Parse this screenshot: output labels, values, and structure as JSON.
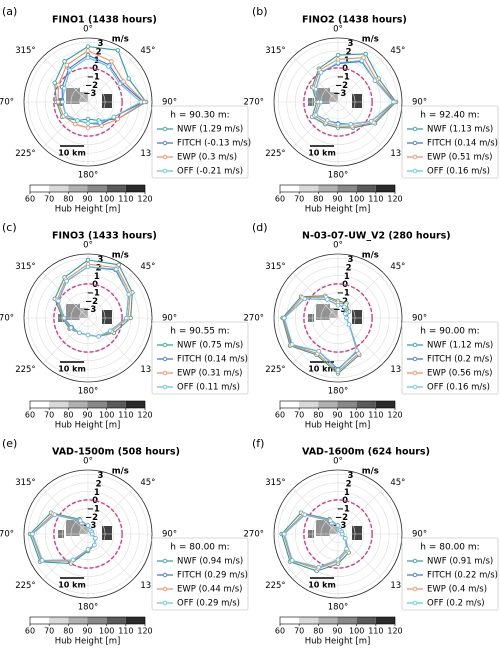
{
  "chart_data": [
    {
      "type": "polar_line",
      "panel_label": "(a)",
      "title": "FINO1 (1438 hours)",
      "r_unit": "m/s",
      "scale_bar": "10 km",
      "legend_title": "h = 90.30 m:",
      "theta": [
        0,
        30,
        60,
        90,
        120,
        150,
        180,
        210,
        240,
        270,
        300,
        330
      ],
      "theta_ticks": [
        {
          "value": 0,
          "label": "0°"
        },
        {
          "value": 45,
          "label": "45°"
        },
        {
          "value": 90,
          "label": "90°"
        },
        {
          "value": 135,
          "label": "135°"
        },
        {
          "value": 180,
          "label": "180°"
        },
        {
          "value": 225,
          "label": "225°"
        },
        {
          "value": 270,
          "label": "270°"
        },
        {
          "value": 315,
          "label": "315°"
        }
      ],
      "rlim": [
        -4,
        3.5
      ],
      "rticks": [
        {
          "value": -3,
          "label": "−3"
        },
        {
          "value": -2,
          "label": "−2"
        },
        {
          "value": -1,
          "label": "−1"
        },
        0,
        1,
        2,
        3
      ],
      "reference_ring": 0,
      "series": [
        {
          "name": "NWF (1.29 m/s)",
          "color": "#2aa198",
          "values": [
            2.5,
            3.0,
            1.5,
            2.8,
            0,
            -1.5,
            -2,
            -1.5,
            -0.5,
            -0.3,
            0.5,
            1.5
          ]
        },
        {
          "name": "FITCH (-0.13 m/s)",
          "color": "#3a6fd8",
          "values": [
            1.5,
            1,
            0.5,
            2.5,
            -0.5,
            -1,
            -1.5,
            -1.5,
            -1,
            -1,
            -0.5,
            0.5
          ]
        },
        {
          "name": "EWP (0.3 m/s)",
          "color": "#f08a5d",
          "values": [
            2,
            1.5,
            0.8,
            2.6,
            0,
            -0.8,
            -1,
            -1,
            -0.7,
            -0.5,
            0,
            1
          ]
        },
        {
          "name": "OFF (-0.21 m/s)",
          "color": "#5bc0eb",
          "values": [
            1.2,
            0.8,
            0.3,
            2.2,
            -0.5,
            -1.2,
            -1.5,
            -1.5,
            -1,
            -1,
            -0.8,
            0.3
          ]
        }
      ],
      "colorbar": {
        "label": "Hub Height [m]",
        "clim": [
          60,
          120
        ],
        "ticks": [
          60,
          70,
          80,
          90,
          100,
          110,
          120
        ],
        "colors": [
          "#ffffff",
          "#d9d9d9",
          "#b0b0b0",
          "#888888",
          "#5a5a5a",
          "#2a2a2a"
        ]
      }
    },
    {
      "type": "polar_line",
      "panel_label": "(b)",
      "title": "FINO2 (1438 hours)",
      "r_unit": "m/s",
      "scale_bar": "10 km",
      "legend_title": "h = 92.40 m:",
      "theta": [
        0,
        30,
        60,
        90,
        120,
        150,
        180,
        210,
        240,
        270,
        300,
        330
      ],
      "theta_ticks": [
        {
          "value": 0,
          "label": "0°"
        },
        {
          "value": 45,
          "label": "45°"
        },
        {
          "value": 90,
          "label": "90°"
        },
        {
          "value": 135,
          "label": "135°"
        },
        {
          "value": 180,
          "label": "180°"
        },
        {
          "value": 225,
          "label": "225°"
        },
        {
          "value": 270,
          "label": "270°"
        },
        {
          "value": 315,
          "label": "315°"
        }
      ],
      "rlim": [
        -4,
        3.5
      ],
      "rticks": [
        {
          "value": -3,
          "label": "−3"
        },
        {
          "value": -2,
          "label": "−2"
        },
        {
          "value": -1,
          "label": "−1"
        },
        0,
        1,
        2,
        3
      ],
      "reference_ring": 0,
      "series": [
        {
          "name": "NWF (1.13 m/s)",
          "color": "#2aa198",
          "values": [
            1.5,
            2.5,
            1.5,
            2.8,
            1,
            -0.5,
            -1,
            -1,
            -0.5,
            -1.5,
            -0.5,
            0.5
          ]
        },
        {
          "name": "FITCH (0.14 m/s)",
          "color": "#3a6fd8",
          "values": [
            0.5,
            1.5,
            1,
            2.6,
            0.5,
            -1,
            -1.5,
            -1.5,
            -1,
            -2,
            -1,
            0
          ]
        },
        {
          "name": "EWP (0.51 m/s)",
          "color": "#f08a5d",
          "values": [
            1,
            2,
            1.2,
            2.7,
            0.8,
            -0.7,
            -1.2,
            -1.2,
            -0.8,
            -1.7,
            -0.7,
            0.3
          ]
        },
        {
          "name": "OFF (0.16 m/s)",
          "color": "#5bc0eb",
          "values": [
            0.6,
            1.6,
            1,
            2.5,
            0.5,
            -1,
            -1.4,
            -1.5,
            -1,
            -2,
            -1,
            0
          ]
        }
      ],
      "colorbar": {
        "label": "Hub Height [m]",
        "clim": [
          60,
          120
        ],
        "ticks": [
          60,
          70,
          80,
          90,
          100,
          110,
          120
        ],
        "colors": [
          "#ffffff",
          "#d9d9d9",
          "#b0b0b0",
          "#888888",
          "#5a5a5a",
          "#2a2a2a"
        ]
      }
    },
    {
      "type": "polar_line",
      "panel_label": "(c)",
      "title": "FINO3 (1433 hours)",
      "r_unit": "m/s",
      "scale_bar": "10 km",
      "legend_title": "h = 90.55 m:",
      "theta": [
        0,
        30,
        60,
        90,
        120,
        150,
        180,
        210,
        240,
        270,
        300,
        330
      ],
      "theta_ticks": [
        {
          "value": 0,
          "label": "0°"
        },
        {
          "value": 45,
          "label": "45°"
        },
        {
          "value": 90,
          "label": "90°"
        },
        {
          "value": 135,
          "label": "135°"
        },
        {
          "value": 180,
          "label": "180°"
        },
        {
          "value": 225,
          "label": "225°"
        },
        {
          "value": 270,
          "label": "270°"
        },
        {
          "value": 315,
          "label": "315°"
        }
      ],
      "rlim": [
        -4,
        3.5
      ],
      "rticks": [
        {
          "value": -3,
          "label": "−3"
        },
        {
          "value": -2,
          "label": "−2"
        },
        {
          "value": -1,
          "label": "−1"
        },
        0,
        1,
        2,
        3
      ],
      "reference_ring": 0,
      "series": [
        {
          "name": "NWF (0.75 m/s)",
          "color": "#2aa198",
          "values": [
            2.8,
            3.2,
            2,
            1,
            -0.5,
            -1.5,
            -2,
            -2,
            -1.5,
            -1,
            0.5,
            1.5
          ]
        },
        {
          "name": "FITCH (0.14 m/s)",
          "color": "#3a6fd8",
          "values": [
            2,
            2.5,
            1.5,
            0.5,
            -1,
            -1.5,
            -2,
            -2,
            -1.8,
            -1.2,
            0,
            1
          ]
        },
        {
          "name": "EWP (0.31 m/s)",
          "color": "#f08a5d",
          "values": [
            2.3,
            2.8,
            1.7,
            0.7,
            -0.8,
            -1.5,
            -2,
            -2,
            -1.6,
            -1.1,
            0.2,
            1.2
          ]
        },
        {
          "name": "OFF (0.11 m/s)",
          "color": "#5bc0eb",
          "values": [
            2,
            2.6,
            1.5,
            0.5,
            -1,
            -1.5,
            -2,
            -2,
            -1.7,
            -1.2,
            0,
            1
          ]
        }
      ],
      "colorbar": {
        "label": "Hub Height [m]",
        "clim": [
          60,
          120
        ],
        "ticks": [
          60,
          70,
          80,
          90,
          100,
          110,
          120
        ],
        "colors": [
          "#ffffff",
          "#d9d9d9",
          "#b0b0b0",
          "#888888",
          "#5a5a5a",
          "#2a2a2a"
        ]
      }
    },
    {
      "type": "polar_line",
      "panel_label": "(d)",
      "title": "N-03-07-UW_V2 (280 hours)",
      "r_unit": "m/s",
      "scale_bar": "10 km",
      "legend_title": "h = 90.00 m:",
      "theta": [
        0,
        30,
        60,
        90,
        120,
        150,
        180,
        210,
        240,
        270,
        300,
        330
      ],
      "theta_ticks": [
        {
          "value": 0,
          "label": "0°"
        },
        {
          "value": 45,
          "label": "45°"
        },
        {
          "value": 90,
          "label": "90°"
        },
        {
          "value": 135,
          "label": "135°"
        },
        {
          "value": 180,
          "label": "180°"
        },
        {
          "value": 225,
          "label": "225°"
        },
        {
          "value": 270,
          "label": "270°"
        },
        {
          "value": 315,
          "label": "315°"
        }
      ],
      "rlim": [
        -4,
        3.5
      ],
      "rticks": [
        {
          "value": -3,
          "label": "−3"
        },
        {
          "value": -2,
          "label": "−2"
        },
        {
          "value": -1,
          "label": "−1"
        },
        0,
        1,
        2,
        3
      ],
      "reference_ring": 0,
      "series": [
        {
          "name": "NWF (1.12 m/s)",
          "color": "#2aa198",
          "values": [
            -2,
            -2,
            -2.5,
            -3,
            -2.5,
            1,
            2.5,
            1,
            2.5,
            2.5,
            1,
            -1
          ]
        },
        {
          "name": "FITCH (0.2 m/s)",
          "color": "#3a6fd8",
          "values": [
            -2.5,
            -2.5,
            -3,
            -3,
            -2.5,
            0.5,
            2,
            0.5,
            2.3,
            2.3,
            0.5,
            -1.5
          ]
        },
        {
          "name": "EWP (0.56 m/s)",
          "color": "#f08a5d",
          "values": [
            -2.2,
            -2.2,
            -2.8,
            -3,
            -2.5,
            0.8,
            2.3,
            0.8,
            2.4,
            2.4,
            0.8,
            -1.2
          ]
        },
        {
          "name": "OFF (0.16 m/s)",
          "color": "#5bc0eb",
          "values": [
            -2.5,
            -2.5,
            -3,
            -3,
            -2.5,
            0.4,
            2.1,
            0.5,
            2.2,
            2.3,
            0.5,
            -1.5
          ]
        }
      ],
      "colorbar": {
        "label": "Hub Height [m]",
        "clim": [
          60,
          120
        ],
        "ticks": [
          60,
          70,
          80,
          90,
          100,
          110,
          120
        ],
        "colors": [
          "#ffffff",
          "#d9d9d9",
          "#b0b0b0",
          "#888888",
          "#5a5a5a",
          "#2a2a2a"
        ]
      }
    },
    {
      "type": "polar_line",
      "panel_label": "(e)",
      "title": "VAD-1500m (508 hours)",
      "r_unit": "m/s",
      "scale_bar": "10 km",
      "legend_title": "h = 80.00 m:",
      "theta": [
        0,
        30,
        60,
        90,
        120,
        150,
        180,
        210,
        240,
        270,
        300,
        330
      ],
      "theta_ticks": [
        {
          "value": 0,
          "label": "0°"
        },
        {
          "value": 45,
          "label": "45°"
        },
        {
          "value": 90,
          "label": "90°"
        },
        {
          "value": 135,
          "label": "135°"
        },
        {
          "value": 180,
          "label": "180°"
        },
        {
          "value": 225,
          "label": "225°"
        },
        {
          "value": 270,
          "label": "270°"
        },
        {
          "value": 315,
          "label": "315°"
        }
      ],
      "rlim": [
        -4,
        3.5
      ],
      "rticks": [
        {
          "value": -3,
          "label": "−3"
        },
        {
          "value": -2,
          "label": "−2"
        },
        {
          "value": -1,
          "label": "−1"
        },
        0,
        1,
        2,
        3
      ],
      "reference_ring": 0,
      "series": [
        {
          "name": "NWF (0.94 m/s)",
          "color": "#2aa198",
          "values": [
            -3,
            -3.5,
            -3.5,
            -3.5,
            -3,
            -2.5,
            -2,
            0,
            2.5,
            2.8,
            1,
            -2
          ]
        },
        {
          "name": "FITCH (0.29 m/s)",
          "color": "#3a6fd8",
          "values": [
            -3,
            -3.5,
            -3.5,
            -3.5,
            -3,
            -2.5,
            -2.2,
            -0.5,
            2.2,
            2.5,
            0.5,
            -2.2
          ]
        },
        {
          "name": "EWP (0.44 m/s)",
          "color": "#f08a5d",
          "values": [
            -3,
            -3.5,
            -3.5,
            -3.5,
            -3,
            -2.5,
            -2.1,
            -0.3,
            2.3,
            2.6,
            0.7,
            -2.1
          ]
        },
        {
          "name": "OFF (0.29 m/s)",
          "color": "#5bc0eb",
          "values": [
            -3,
            -3.5,
            -3.5,
            -3.5,
            -3,
            -2.5,
            -2.2,
            -0.5,
            2.2,
            2.5,
            0.5,
            -2.2
          ]
        }
      ],
      "colorbar": {
        "label": "Hub Height [m]",
        "clim": [
          60,
          120
        ],
        "ticks": [
          60,
          70,
          80,
          90,
          100,
          110,
          120
        ],
        "colors": [
          "#ffffff",
          "#d9d9d9",
          "#b0b0b0",
          "#888888",
          "#5a5a5a",
          "#2a2a2a"
        ]
      }
    },
    {
      "type": "polar_line",
      "panel_label": "(f)",
      "title": "VAD-1600m (624 hours)",
      "r_unit": "m/s",
      "scale_bar": "10 km",
      "legend_title": "h = 80.00 m:",
      "theta": [
        0,
        30,
        60,
        90,
        120,
        150,
        180,
        210,
        240,
        270,
        300,
        330
      ],
      "theta_ticks": [
        {
          "value": 0,
          "label": "0°"
        },
        {
          "value": 45,
          "label": "45°"
        },
        {
          "value": 90,
          "label": "90°"
        },
        {
          "value": 135,
          "label": "135°"
        },
        {
          "value": 180,
          "label": "180°"
        },
        {
          "value": 225,
          "label": "225°"
        },
        {
          "value": 270,
          "label": "270°"
        },
        {
          "value": 315,
          "label": "315°"
        }
      ],
      "rlim": [
        -4,
        3.5
      ],
      "rticks": [
        {
          "value": -3,
          "label": "−3"
        },
        {
          "value": -2,
          "label": "−2"
        },
        {
          "value": -1,
          "label": "−1"
        },
        0,
        1,
        2,
        3
      ],
      "reference_ring": 0,
      "series": [
        {
          "name": "NWF (0.91 m/s)",
          "color": "#2aa198",
          "values": [
            -3,
            -3.5,
            -3.5,
            -3.5,
            -3,
            -1.5,
            -0.5,
            1,
            2.5,
            2.6,
            1,
            -2
          ]
        },
        {
          "name": "FITCH (0.22 m/s)",
          "color": "#3a6fd8",
          "values": [
            -3,
            -3.5,
            -3.5,
            -3.5,
            -3,
            -2,
            -1,
            0.5,
            2.2,
            2.3,
            0.5,
            -2.2
          ]
        },
        {
          "name": "EWP (0.4 m/s)",
          "color": "#f08a5d",
          "values": [
            -3,
            -3.5,
            -3.5,
            -3.5,
            -3,
            -1.8,
            -0.8,
            0.7,
            2.3,
            2.4,
            0.7,
            -2.1
          ]
        },
        {
          "name": "OFF (0.2 m/s)",
          "color": "#5bc0eb",
          "values": [
            -3,
            -3.5,
            -3.5,
            -3.5,
            -3,
            -2,
            -1,
            0.5,
            2.2,
            2.3,
            0.5,
            -2.2
          ]
        }
      ],
      "colorbar": {
        "label": "Hub Height [m]",
        "clim": [
          60,
          120
        ],
        "ticks": [
          60,
          70,
          80,
          90,
          100,
          110,
          120
        ],
        "colors": [
          "#ffffff",
          "#d9d9d9",
          "#b0b0b0",
          "#888888",
          "#5a5a5a",
          "#2a2a2a"
        ]
      }
    }
  ]
}
